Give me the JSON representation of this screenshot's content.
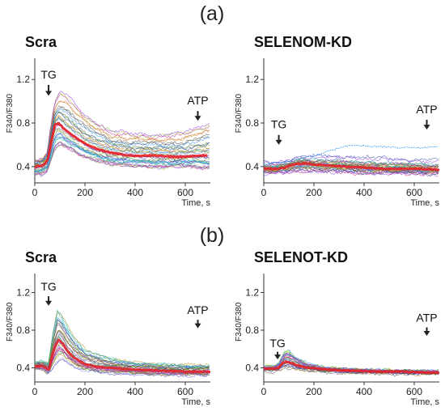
{
  "figure": {
    "labels": [
      "(a)",
      "(b)"
    ]
  },
  "colors": {
    "mean_trace": "#e8202a",
    "axis": "#333333",
    "arrow": "#222222",
    "cell_traces": [
      "#2b3ea8",
      "#3a8f3a",
      "#8a2be2",
      "#c71585",
      "#1e90ff",
      "#444444",
      "#b8860b",
      "#9acd32",
      "#20b2aa",
      "#7b68ee",
      "#d2691e",
      "#556b2f"
    ]
  },
  "chart_data": [
    {
      "type": "line",
      "title": "Scra",
      "ylabel": "F340/F380",
      "xlabel": "Time, s",
      "xlim": [
        0,
        700
      ],
      "ylim": [
        0.25,
        1.35
      ],
      "xticks": [
        0,
        200,
        400,
        600
      ],
      "yticks": [
        0.4,
        0.8,
        1.2
      ],
      "annotations": [
        {
          "text": "TG",
          "x": 55,
          "label_y": 1.21,
          "arrow_top": 1.15,
          "arrow_bottom": 1.05
        },
        {
          "text": "ATP",
          "x": 650,
          "label_y": 0.97,
          "arrow_top": 0.91,
          "arrow_bottom": 0.82
        }
      ],
      "series": [
        {
          "role": "mean",
          "x": [
            0,
            30,
            50,
            65,
            80,
            95,
            110,
            130,
            160,
            200,
            250,
            300,
            350,
            400,
            450,
            500,
            550,
            600,
            650,
            690
          ],
          "y": [
            0.4,
            0.41,
            0.45,
            0.62,
            0.78,
            0.8,
            0.76,
            0.72,
            0.67,
            0.61,
            0.56,
            0.53,
            0.51,
            0.5,
            0.5,
            0.5,
            0.49,
            0.49,
            0.5,
            0.5
          ]
        }
      ],
      "envelope": {
        "x": [
          0,
          30,
          50,
          65,
          80,
          100,
          120,
          160,
          200,
          300,
          400,
          500,
          600,
          690
        ],
        "low": [
          0.32,
          0.33,
          0.36,
          0.45,
          0.55,
          0.6,
          0.58,
          0.53,
          0.48,
          0.42,
          0.4,
          0.39,
          0.4,
          0.38
        ],
        "high": [
          0.46,
          0.48,
          0.55,
          0.8,
          1.0,
          1.1,
          1.08,
          0.98,
          0.88,
          0.74,
          0.7,
          0.7,
          0.72,
          0.8
        ]
      },
      "n_cells": 34,
      "seed": 11
    },
    {
      "type": "line",
      "title": "SELENOM-KD",
      "ylabel": "F340/F380",
      "xlabel": "Time, s",
      "xlim": [
        0,
        700
      ],
      "ylim": [
        0.25,
        1.35
      ],
      "xticks": [
        0,
        200,
        400,
        600
      ],
      "yticks": [
        0.4,
        0.8,
        1.2
      ],
      "annotations": [
        {
          "text": "TG",
          "x": 60,
          "label_y": 0.75,
          "arrow_top": 0.69,
          "arrow_bottom": 0.6
        },
        {
          "text": "ATP",
          "x": 650,
          "label_y": 0.89,
          "arrow_top": 0.83,
          "arrow_bottom": 0.74
        }
      ],
      "series": [
        {
          "role": "mean",
          "x": [
            0,
            50,
            80,
            120,
            160,
            200,
            260,
            330,
            400,
            500,
            600,
            700
          ],
          "y": [
            0.38,
            0.38,
            0.39,
            0.42,
            0.43,
            0.42,
            0.41,
            0.4,
            0.39,
            0.38,
            0.38,
            0.37
          ]
        }
      ],
      "envelope": {
        "x": [
          0,
          50,
          100,
          150,
          200,
          300,
          400,
          500,
          600,
          700
        ],
        "low": [
          0.33,
          0.33,
          0.34,
          0.35,
          0.35,
          0.34,
          0.33,
          0.33,
          0.33,
          0.32
        ],
        "high": [
          0.44,
          0.44,
          0.47,
          0.5,
          0.5,
          0.5,
          0.49,
          0.48,
          0.47,
          0.46
        ]
      },
      "outlier": {
        "x": [
          0,
          100,
          200,
          300,
          350,
          400,
          500,
          600,
          700
        ],
        "y": [
          0.42,
          0.45,
          0.5,
          0.57,
          0.6,
          0.59,
          0.58,
          0.57,
          0.58
        ]
      },
      "n_cells": 30,
      "seed": 23
    },
    {
      "type": "line",
      "title": "Scra",
      "ylabel": "F340/F380",
      "xlabel": "Time, s",
      "xlim": [
        0,
        700
      ],
      "ylim": [
        0.25,
        1.35
      ],
      "xticks": [
        0,
        200,
        400,
        600
      ],
      "yticks": [
        0.4,
        0.8,
        1.2
      ],
      "annotations": [
        {
          "text": "TG",
          "x": 55,
          "label_y": 1.22,
          "arrow_top": 1.16,
          "arrow_bottom": 1.06
        },
        {
          "text": "ATP",
          "x": 650,
          "label_y": 0.97,
          "arrow_top": 0.91,
          "arrow_bottom": 0.82
        }
      ],
      "series": [
        {
          "role": "mean",
          "x": [
            0,
            30,
            55,
            65,
            80,
            95,
            110,
            130,
            160,
            200,
            250,
            300,
            400,
            500,
            600,
            700
          ],
          "y": [
            0.42,
            0.42,
            0.38,
            0.48,
            0.62,
            0.7,
            0.66,
            0.58,
            0.5,
            0.44,
            0.41,
            0.4,
            0.38,
            0.37,
            0.36,
            0.36
          ]
        }
      ],
      "envelope": {
        "x": [
          0,
          30,
          55,
          70,
          90,
          110,
          130,
          160,
          200,
          300,
          400,
          500,
          600,
          700
        ],
        "low": [
          0.38,
          0.38,
          0.34,
          0.38,
          0.45,
          0.5,
          0.45,
          0.4,
          0.37,
          0.34,
          0.33,
          0.32,
          0.32,
          0.32
        ],
        "high": [
          0.46,
          0.47,
          0.45,
          0.75,
          1.02,
          0.95,
          0.85,
          0.72,
          0.6,
          0.5,
          0.46,
          0.44,
          0.43,
          0.43
        ]
      },
      "n_cells": 34,
      "seed": 37
    },
    {
      "type": "line",
      "title": "SELENOT-KD",
      "ylabel": "F340/F380",
      "xlabel": "Time, s",
      "xlim": [
        0,
        700
      ],
      "ylim": [
        0.25,
        1.35
      ],
      "xticks": [
        0,
        200,
        400,
        600
      ],
      "yticks": [
        0.4,
        0.8,
        1.2
      ],
      "annotations": [
        {
          "text": "TG",
          "x": 55,
          "label_y": 0.62,
          "arrow_top": 0.57,
          "arrow_bottom": 0.49
        },
        {
          "text": "ATP",
          "x": 650,
          "label_y": 0.89,
          "arrow_top": 0.83,
          "arrow_bottom": 0.74
        }
      ],
      "series": [
        {
          "role": "mean",
          "x": [
            0,
            40,
            60,
            75,
            90,
            110,
            140,
            180,
            250,
            350,
            450,
            550,
            650,
            700
          ],
          "y": [
            0.39,
            0.39,
            0.4,
            0.45,
            0.47,
            0.45,
            0.42,
            0.4,
            0.38,
            0.37,
            0.36,
            0.36,
            0.35,
            0.35
          ]
        }
      ],
      "envelope": {
        "x": [
          0,
          40,
          60,
          80,
          100,
          130,
          180,
          250,
          400,
          550,
          700
        ],
        "low": [
          0.36,
          0.36,
          0.37,
          0.39,
          0.39,
          0.38,
          0.36,
          0.35,
          0.34,
          0.33,
          0.33
        ],
        "high": [
          0.41,
          0.42,
          0.46,
          0.58,
          0.6,
          0.52,
          0.44,
          0.4,
          0.38,
          0.37,
          0.37
        ]
      },
      "n_cells": 30,
      "seed": 53
    }
  ]
}
